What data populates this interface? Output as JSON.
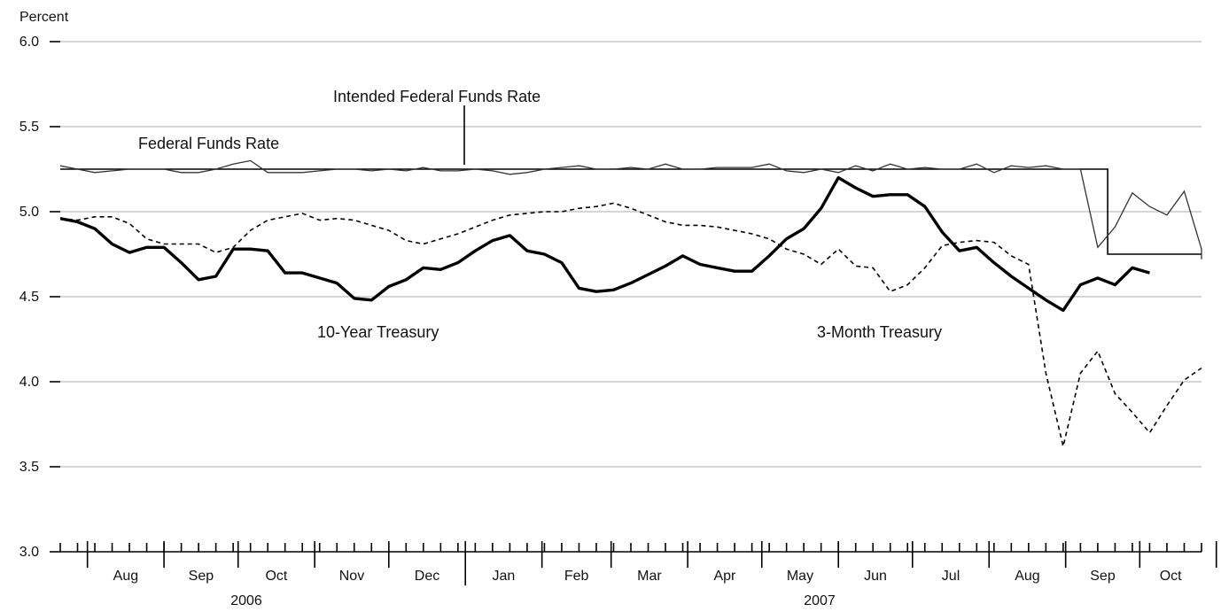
{
  "chart_data": {
    "type": "line",
    "ylabel": "Percent",
    "ylim": [
      3.0,
      6.0
    ],
    "y_ticks": [
      "3.0",
      "3.5",
      "4.0",
      "4.5",
      "5.0",
      "5.5",
      "6.0"
    ],
    "months": [
      "Aug",
      "Sep",
      "Oct",
      "Nov",
      "Dec",
      "Jan",
      "Feb",
      "Mar",
      "Apr",
      "May",
      "Jun",
      "Jul",
      "Aug",
      "Sep",
      "Oct"
    ],
    "years": [
      "2006",
      "2007"
    ],
    "annotations": {
      "intended_ffr": "Intended Federal Funds Rate",
      "ffr": "Federal Funds Rate",
      "ten_year": "10-Year Treasury",
      "three_month": "3-Month Treasury"
    },
    "x_range": [
      "2006-07-21",
      "2007-10-26"
    ],
    "series": [
      {
        "name": "Intended Federal Funds Rate",
        "style": "step",
        "points": [
          [
            "2006-07-21",
            5.25
          ],
          [
            "2007-09-18",
            5.25
          ],
          [
            "2007-09-18",
            4.75
          ],
          [
            "2007-10-26",
            4.75
          ]
        ]
      },
      {
        "name": "Federal Funds Rate",
        "style": "thin",
        "points": [
          [
            "2006-07-21",
            5.27
          ],
          [
            "2006-07-28",
            5.25
          ],
          [
            "2006-08-04",
            5.23
          ],
          [
            "2006-08-11",
            5.24
          ],
          [
            "2006-08-18",
            5.25
          ],
          [
            "2006-08-25",
            5.25
          ],
          [
            "2006-09-01",
            5.25
          ],
          [
            "2006-09-08",
            5.23
          ],
          [
            "2006-09-15",
            5.23
          ],
          [
            "2006-09-22",
            5.25
          ],
          [
            "2006-09-29",
            5.28
          ],
          [
            "2006-10-06",
            5.3
          ],
          [
            "2006-10-13",
            5.23
          ],
          [
            "2006-10-20",
            5.23
          ],
          [
            "2006-10-27",
            5.23
          ],
          [
            "2006-11-03",
            5.24
          ],
          [
            "2006-11-10",
            5.25
          ],
          [
            "2006-11-17",
            5.25
          ],
          [
            "2006-11-24",
            5.24
          ],
          [
            "2006-12-01",
            5.25
          ],
          [
            "2006-12-08",
            5.24
          ],
          [
            "2006-12-15",
            5.26
          ],
          [
            "2006-12-22",
            5.24
          ],
          [
            "2006-12-29",
            5.24
          ],
          [
            "2007-01-05",
            5.25
          ],
          [
            "2007-01-12",
            5.24
          ],
          [
            "2007-01-19",
            5.22
          ],
          [
            "2007-01-26",
            5.23
          ],
          [
            "2007-02-02",
            5.25
          ],
          [
            "2007-02-09",
            5.26
          ],
          [
            "2007-02-16",
            5.27
          ],
          [
            "2007-02-23",
            5.25
          ],
          [
            "2007-03-02",
            5.25
          ],
          [
            "2007-03-09",
            5.26
          ],
          [
            "2007-03-16",
            5.25
          ],
          [
            "2007-03-23",
            5.28
          ],
          [
            "2007-03-30",
            5.25
          ],
          [
            "2007-04-06",
            5.25
          ],
          [
            "2007-04-13",
            5.26
          ],
          [
            "2007-04-20",
            5.26
          ],
          [
            "2007-04-27",
            5.26
          ],
          [
            "2007-05-04",
            5.28
          ],
          [
            "2007-05-11",
            5.24
          ],
          [
            "2007-05-18",
            5.23
          ],
          [
            "2007-05-25",
            5.25
          ],
          [
            "2007-06-01",
            5.23
          ],
          [
            "2007-06-08",
            5.27
          ],
          [
            "2007-06-15",
            5.24
          ],
          [
            "2007-06-22",
            5.28
          ],
          [
            "2007-06-29",
            5.25
          ],
          [
            "2007-07-06",
            5.26
          ],
          [
            "2007-07-13",
            5.25
          ],
          [
            "2007-07-20",
            5.25
          ],
          [
            "2007-07-27",
            5.28
          ],
          [
            "2007-08-03",
            5.23
          ],
          [
            "2007-08-10",
            5.27
          ],
          [
            "2007-08-17",
            5.26
          ],
          [
            "2007-08-24",
            5.27
          ],
          [
            "2007-08-31",
            5.25
          ],
          [
            "2007-09-07",
            5.25
          ],
          [
            "2007-09-14",
            4.79
          ],
          [
            "2007-09-21",
            4.91
          ],
          [
            "2007-09-28",
            5.11
          ],
          [
            "2007-10-05",
            5.03
          ],
          [
            "2007-10-12",
            4.98
          ],
          [
            "2007-10-19",
            5.12
          ],
          [
            "2007-10-26",
            4.78
          ],
          [
            "2007-11-02",
            4.72
          ],
          [
            "2007-11-09",
            4.75
          ],
          [
            "2007-11-16",
            4.75
          ]
        ]
      },
      {
        "name": "3-Month Treasury",
        "style": "dashed",
        "points": [
          [
            "2006-07-21",
            4.96
          ],
          [
            "2006-07-28",
            4.95
          ],
          [
            "2006-08-04",
            4.97
          ],
          [
            "2006-08-11",
            4.97
          ],
          [
            "2006-08-18",
            4.93
          ],
          [
            "2006-08-25",
            4.84
          ],
          [
            "2006-09-01",
            4.81
          ],
          [
            "2006-09-08",
            4.81
          ],
          [
            "2006-09-15",
            4.81
          ],
          [
            "2006-09-22",
            4.76
          ],
          [
            "2006-09-29",
            4.79
          ],
          [
            "2006-10-06",
            4.89
          ],
          [
            "2006-10-13",
            4.95
          ],
          [
            "2006-10-20",
            4.97
          ],
          [
            "2006-10-27",
            4.99
          ],
          [
            "2006-11-03",
            4.95
          ],
          [
            "2006-11-10",
            4.96
          ],
          [
            "2006-11-17",
            4.95
          ],
          [
            "2006-11-24",
            4.92
          ],
          [
            "2006-12-01",
            4.89
          ],
          [
            "2006-12-08",
            4.83
          ],
          [
            "2006-12-15",
            4.81
          ],
          [
            "2006-12-22",
            4.84
          ],
          [
            "2006-12-29",
            4.87
          ],
          [
            "2007-01-05",
            4.91
          ],
          [
            "2007-01-12",
            4.95
          ],
          [
            "2007-01-19",
            4.98
          ],
          [
            "2007-01-26",
            4.99
          ],
          [
            "2007-02-02",
            5.0
          ],
          [
            "2007-02-09",
            5.0
          ],
          [
            "2007-02-16",
            5.02
          ],
          [
            "2007-02-23",
            5.03
          ],
          [
            "2007-03-02",
            5.05
          ],
          [
            "2007-03-09",
            5.02
          ],
          [
            "2007-03-16",
            4.98
          ],
          [
            "2007-03-23",
            4.94
          ],
          [
            "2007-03-30",
            4.92
          ],
          [
            "2007-04-06",
            4.92
          ],
          [
            "2007-04-13",
            4.91
          ],
          [
            "2007-04-20",
            4.89
          ],
          [
            "2007-04-27",
            4.87
          ],
          [
            "2007-05-04",
            4.84
          ],
          [
            "2007-05-11",
            4.78
          ],
          [
            "2007-05-18",
            4.75
          ],
          [
            "2007-05-25",
            4.69
          ],
          [
            "2007-06-01",
            4.78
          ],
          [
            "2007-06-08",
            4.68
          ],
          [
            "2007-06-15",
            4.67
          ],
          [
            "2007-06-22",
            4.53
          ],
          [
            "2007-06-29",
            4.57
          ],
          [
            "2007-07-06",
            4.67
          ],
          [
            "2007-07-13",
            4.8
          ],
          [
            "2007-07-20",
            4.82
          ],
          [
            "2007-07-27",
            4.83
          ],
          [
            "2007-08-03",
            4.82
          ],
          [
            "2007-08-10",
            4.74
          ],
          [
            "2007-08-17",
            4.69
          ],
          [
            "2007-08-24",
            4.05
          ],
          [
            "2007-08-31",
            3.62
          ],
          [
            "2007-09-07",
            4.05
          ],
          [
            "2007-09-14",
            4.18
          ],
          [
            "2007-09-21",
            3.93
          ],
          [
            "2007-09-28",
            3.82
          ],
          [
            "2007-10-05",
            3.7
          ],
          [
            "2007-10-12",
            3.86
          ],
          [
            "2007-10-19",
            4.01
          ],
          [
            "2007-10-26",
            4.08
          ]
        ]
      },
      {
        "name": "10-Year Treasury",
        "style": "thick",
        "points": [
          [
            "2006-07-21",
            4.96
          ],
          [
            "2006-07-28",
            4.94
          ],
          [
            "2006-08-04",
            4.9
          ],
          [
            "2006-08-11",
            4.81
          ],
          [
            "2006-08-18",
            4.76
          ],
          [
            "2006-08-25",
            4.79
          ],
          [
            "2006-09-01",
            4.79
          ],
          [
            "2006-09-08",
            4.7
          ],
          [
            "2006-09-15",
            4.6
          ],
          [
            "2006-09-22",
            4.62
          ],
          [
            "2006-09-29",
            4.78
          ],
          [
            "2006-10-06",
            4.78
          ],
          [
            "2006-10-13",
            4.77
          ],
          [
            "2006-10-20",
            4.64
          ],
          [
            "2006-10-27",
            4.64
          ],
          [
            "2006-11-03",
            4.61
          ],
          [
            "2006-11-10",
            4.58
          ],
          [
            "2006-11-17",
            4.49
          ],
          [
            "2006-11-24",
            4.48
          ],
          [
            "2006-12-01",
            4.56
          ],
          [
            "2006-12-08",
            4.6
          ],
          [
            "2006-12-15",
            4.67
          ],
          [
            "2006-12-22",
            4.66
          ],
          [
            "2006-12-29",
            4.7
          ],
          [
            "2007-01-05",
            4.77
          ],
          [
            "2007-01-12",
            4.83
          ],
          [
            "2007-01-19",
            4.86
          ],
          [
            "2007-01-26",
            4.77
          ],
          [
            "2007-02-02",
            4.75
          ],
          [
            "2007-02-09",
            4.7
          ],
          [
            "2007-02-16",
            4.55
          ],
          [
            "2007-02-23",
            4.53
          ],
          [
            "2007-03-02",
            4.54
          ],
          [
            "2007-03-09",
            4.58
          ],
          [
            "2007-03-16",
            4.63
          ],
          [
            "2007-03-23",
            4.68
          ],
          [
            "2007-03-30",
            4.74
          ],
          [
            "2007-04-06",
            4.69
          ],
          [
            "2007-04-13",
            4.67
          ],
          [
            "2007-04-20",
            4.65
          ],
          [
            "2007-04-27",
            4.65
          ],
          [
            "2007-05-04",
            4.74
          ],
          [
            "2007-05-11",
            4.84
          ],
          [
            "2007-05-18",
            4.9
          ],
          [
            "2007-05-25",
            5.02
          ],
          [
            "2007-06-01",
            5.2
          ],
          [
            "2007-06-08",
            5.14
          ],
          [
            "2007-06-15",
            5.09
          ],
          [
            "2007-06-22",
            5.1
          ],
          [
            "2007-06-29",
            5.1
          ],
          [
            "2007-07-06",
            5.03
          ],
          [
            "2007-07-13",
            4.88
          ],
          [
            "2007-07-20",
            4.77
          ],
          [
            "2007-07-27",
            4.79
          ],
          [
            "2007-08-03",
            4.7
          ],
          [
            "2007-08-10",
            4.62
          ],
          [
            "2007-08-17",
            4.55
          ],
          [
            "2007-08-24",
            4.48
          ],
          [
            "2007-08-31",
            4.42
          ],
          [
            "2007-09-07",
            4.57
          ],
          [
            "2007-09-14",
            4.61
          ],
          [
            "2007-09-21",
            4.57
          ],
          [
            "2007-09-28",
            4.67
          ],
          [
            "2007-10-05",
            4.64
          ]
        ]
      }
    ]
  }
}
